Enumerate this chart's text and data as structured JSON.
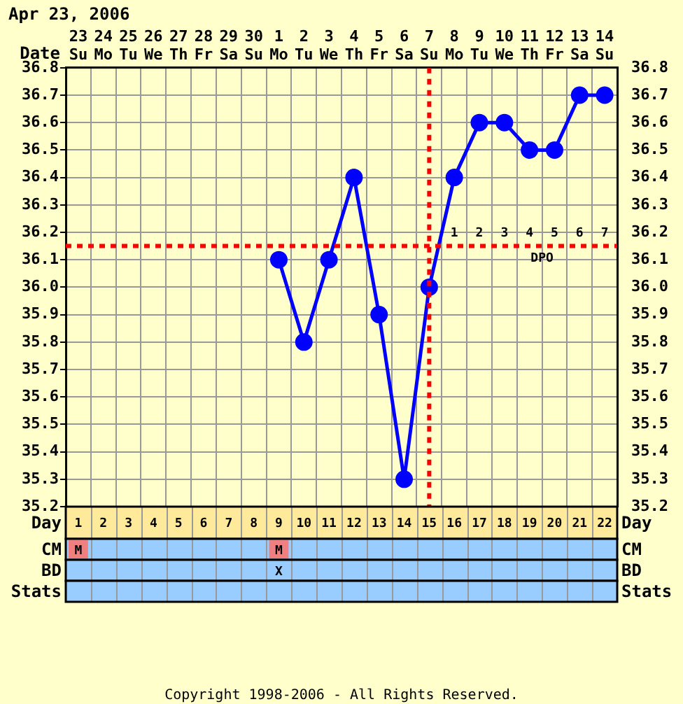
{
  "chart_data": {
    "type": "line",
    "title": "Apr 23, 2006",
    "xlabel": "Date",
    "categories": [
      "23 Su",
      "24 Mo",
      "25 Tu",
      "26 We",
      "27 Th",
      "28 Fr",
      "29 Sa",
      "30 Su",
      "1 Mo",
      "2 Tu",
      "3 We",
      "4 Th",
      "5 Fr",
      "6 Sa",
      "7 Su",
      "8 Mo",
      "9 Tu",
      "10 We",
      "11 Th",
      "12 Fr",
      "13 Sa",
      "14 Su"
    ],
    "series": [
      {
        "color": "#0000ff",
        "values": [
          null,
          null,
          null,
          null,
          null,
          null,
          null,
          null,
          36.1,
          35.8,
          36.1,
          36.4,
          35.9,
          35.3,
          36.0,
          36.4,
          36.6,
          36.6,
          36.5,
          36.5,
          36.7,
          36.7
        ]
      }
    ],
    "ylim": [
      35.2,
      36.8
    ],
    "yticks": [
      {
        "value": 35.2,
        "label": "35.2"
      },
      {
        "value": 35.3,
        "label": "35.3"
      },
      {
        "value": 35.4,
        "label": "35.4"
      },
      {
        "value": 35.5,
        "label": "35.5"
      },
      {
        "value": 35.6,
        "label": "35.6"
      },
      {
        "value": 35.7,
        "label": "35.7"
      },
      {
        "value": 35.8,
        "label": "35.8"
      },
      {
        "value": 35.9,
        "label": "35.9"
      },
      {
        "value": 36.0,
        "label": "36.0"
      },
      {
        "value": 36.1,
        "label": "36.1"
      },
      {
        "value": 36.2,
        "label": "36.2"
      },
      {
        "value": 36.3,
        "label": "36.3"
      },
      {
        "value": 36.4,
        "label": "36.4"
      },
      {
        "value": 36.5,
        "label": "36.5"
      },
      {
        "value": 36.6,
        "label": "36.6"
      },
      {
        "value": 36.7,
        "label": "36.7"
      },
      {
        "value": 36.8,
        "label": "36.8"
      }
    ],
    "y2lim": [
      35.2,
      36.8
    ],
    "y2ticks": [
      {
        "value": 35.2,
        "label": "35.2"
      },
      {
        "value": 35.3,
        "label": "35.3"
      },
      {
        "value": 35.4,
        "label": "35.4"
      },
      {
        "value": 35.5,
        "label": "35.5"
      },
      {
        "value": 35.6,
        "label": "35.6"
      },
      {
        "value": 35.7,
        "label": "35.7"
      },
      {
        "value": 35.8,
        "label": "35.8"
      },
      {
        "value": 35.9,
        "label": "35.9"
      },
      {
        "value": 36.0,
        "label": "36.0"
      },
      {
        "value": 36.1,
        "label": "36.1"
      },
      {
        "value": 36.2,
        "label": "36.2"
      },
      {
        "value": 36.3,
        "label": "36.3"
      },
      {
        "value": 36.4,
        "label": "36.4"
      },
      {
        "value": 36.5,
        "label": "36.5"
      },
      {
        "value": 36.6,
        "label": "36.6"
      },
      {
        "value": 36.7,
        "label": "36.7"
      },
      {
        "value": 36.8,
        "label": "36.8"
      }
    ],
    "grid": true,
    "legend": false,
    "marker": "circle",
    "line_style": "solid",
    "ref_lines": [
      {
        "axis": "y",
        "value": 36.15,
        "color": "#ff0000",
        "line_style": "dotted"
      },
      {
        "axis": "x",
        "value": "7 Su",
        "color": "#ff0000",
        "line_style": "dotted"
      }
    ],
    "annotations": [
      "Day",
      "CM",
      "BD",
      "Stats",
      "1",
      "2",
      "3",
      "4",
      "5",
      "6",
      "7",
      "DPO",
      "1 2 3 4 5 6 7 8 9 10 11 12 13 14 15 16 17 18 19 20 21 22",
      "M",
      "M",
      "X",
      "Copyright 1998-2006 - All Rights Reserved."
    ]
  }
}
